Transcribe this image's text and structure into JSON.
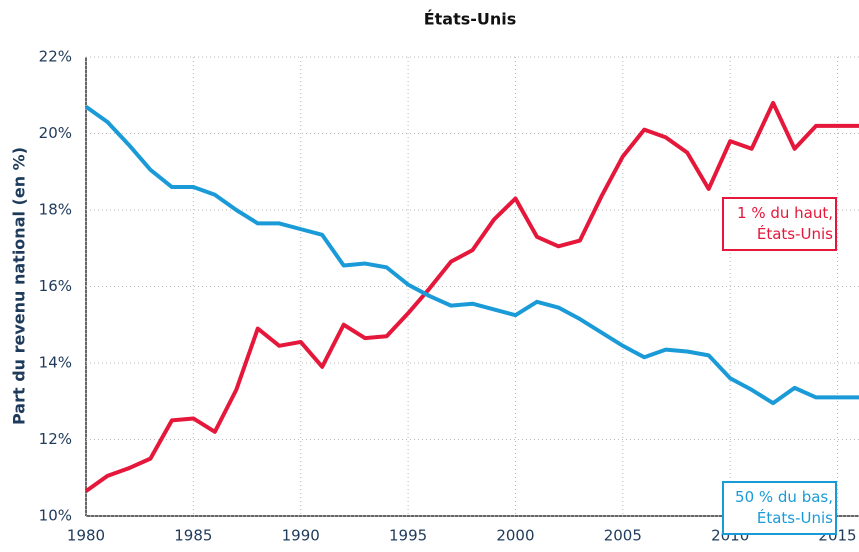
{
  "chart_data": {
    "type": "line",
    "title": "États-Unis",
    "y_label": "Part du revenu national (en %)",
    "x": [
      1980,
      1981,
      1982,
      1983,
      1984,
      1985,
      1986,
      1987,
      1988,
      1989,
      1990,
      1991,
      1992,
      1993,
      1994,
      1995,
      1996,
      1997,
      1998,
      1999,
      2000,
      2001,
      2002,
      2003,
      2004,
      2005,
      2006,
      2007,
      2008,
      2009,
      2010,
      2011,
      2012,
      2013,
      2014,
      2015,
      2016
    ],
    "xlim": [
      1980,
      2016
    ],
    "xticks": [
      1980,
      1985,
      1990,
      1995,
      2000,
      2005,
      2010,
      2015
    ],
    "ylim": [
      10,
      22
    ],
    "yticks": [
      {
        "value": 10,
        "label": "10%"
      },
      {
        "value": 12,
        "label": "12%"
      },
      {
        "value": 14,
        "label": "14%"
      },
      {
        "value": 16,
        "label": "16%"
      },
      {
        "value": 18,
        "label": "18%"
      },
      {
        "value": 20,
        "label": "20%"
      },
      {
        "value": 22,
        "label": "22%"
      }
    ],
    "grid": true,
    "series": [
      {
        "name": "1 % du haut,\nÉtats-Unis",
        "color": "#e5173a",
        "values": [
          10.65,
          11.05,
          11.25,
          11.5,
          12.5,
          12.55,
          12.2,
          13.3,
          14.9,
          14.45,
          14.55,
          13.9,
          15.0,
          14.65,
          14.7,
          15.3,
          15.95,
          16.65,
          16.95,
          17.75,
          18.3,
          17.3,
          17.05,
          17.2,
          18.35,
          19.4,
          20.1,
          19.9,
          19.5,
          18.55,
          19.8,
          19.6,
          20.8,
          19.6,
          20.2,
          20.2,
          20.2
        ]
      },
      {
        "name": "50 % du bas,\nÉtats-Unis",
        "color": "#1a9bd7",
        "values": [
          20.7,
          20.3,
          19.7,
          19.05,
          18.6,
          18.6,
          18.4,
          18.0,
          17.65,
          17.65,
          17.5,
          17.35,
          16.55,
          16.6,
          16.5,
          16.05,
          15.75,
          15.5,
          15.55,
          15.4,
          15.25,
          15.6,
          15.45,
          15.15,
          14.8,
          14.45,
          14.15,
          14.35,
          14.3,
          14.2,
          13.6,
          13.3,
          12.95,
          13.35,
          13.1,
          13.1,
          13.1
        ]
      }
    ]
  }
}
